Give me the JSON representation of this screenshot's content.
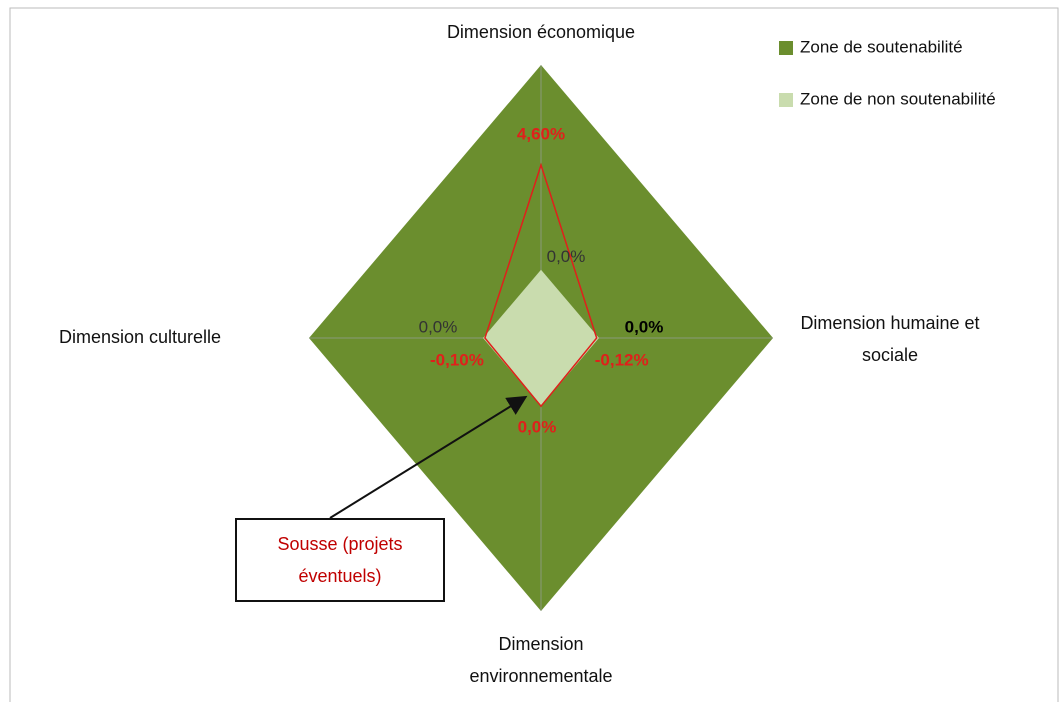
{
  "chart_data": {
    "type": "radar",
    "categories": [
      "Dimension économique",
      "Dimension humaine et sociale",
      "Dimension environnementale",
      "Dimension culturelle"
    ],
    "rlim": [
      -3,
      9
    ],
    "series": [
      {
        "name": "Zone de soutenabilité",
        "color": "#6b8e2e",
        "values": [
          9,
          9,
          9,
          9
        ]
      },
      {
        "name": "Zone de non soutenabilité",
        "color": "#c9dcae",
        "values": [
          0,
          0,
          0,
          0
        ],
        "value_labels": [
          "0,0%",
          "0,0%",
          null,
          "0,0%"
        ]
      },
      {
        "color": "#e0201b",
        "values": [
          4.6,
          -0.12,
          0,
          -0.1
        ],
        "value_labels": [
          "4,60%",
          "-0,12%",
          "0,0%",
          "-0,10%"
        ]
      }
    ],
    "annotation": "Sousse (projets éventuels)",
    "legend": "top-right"
  }
}
